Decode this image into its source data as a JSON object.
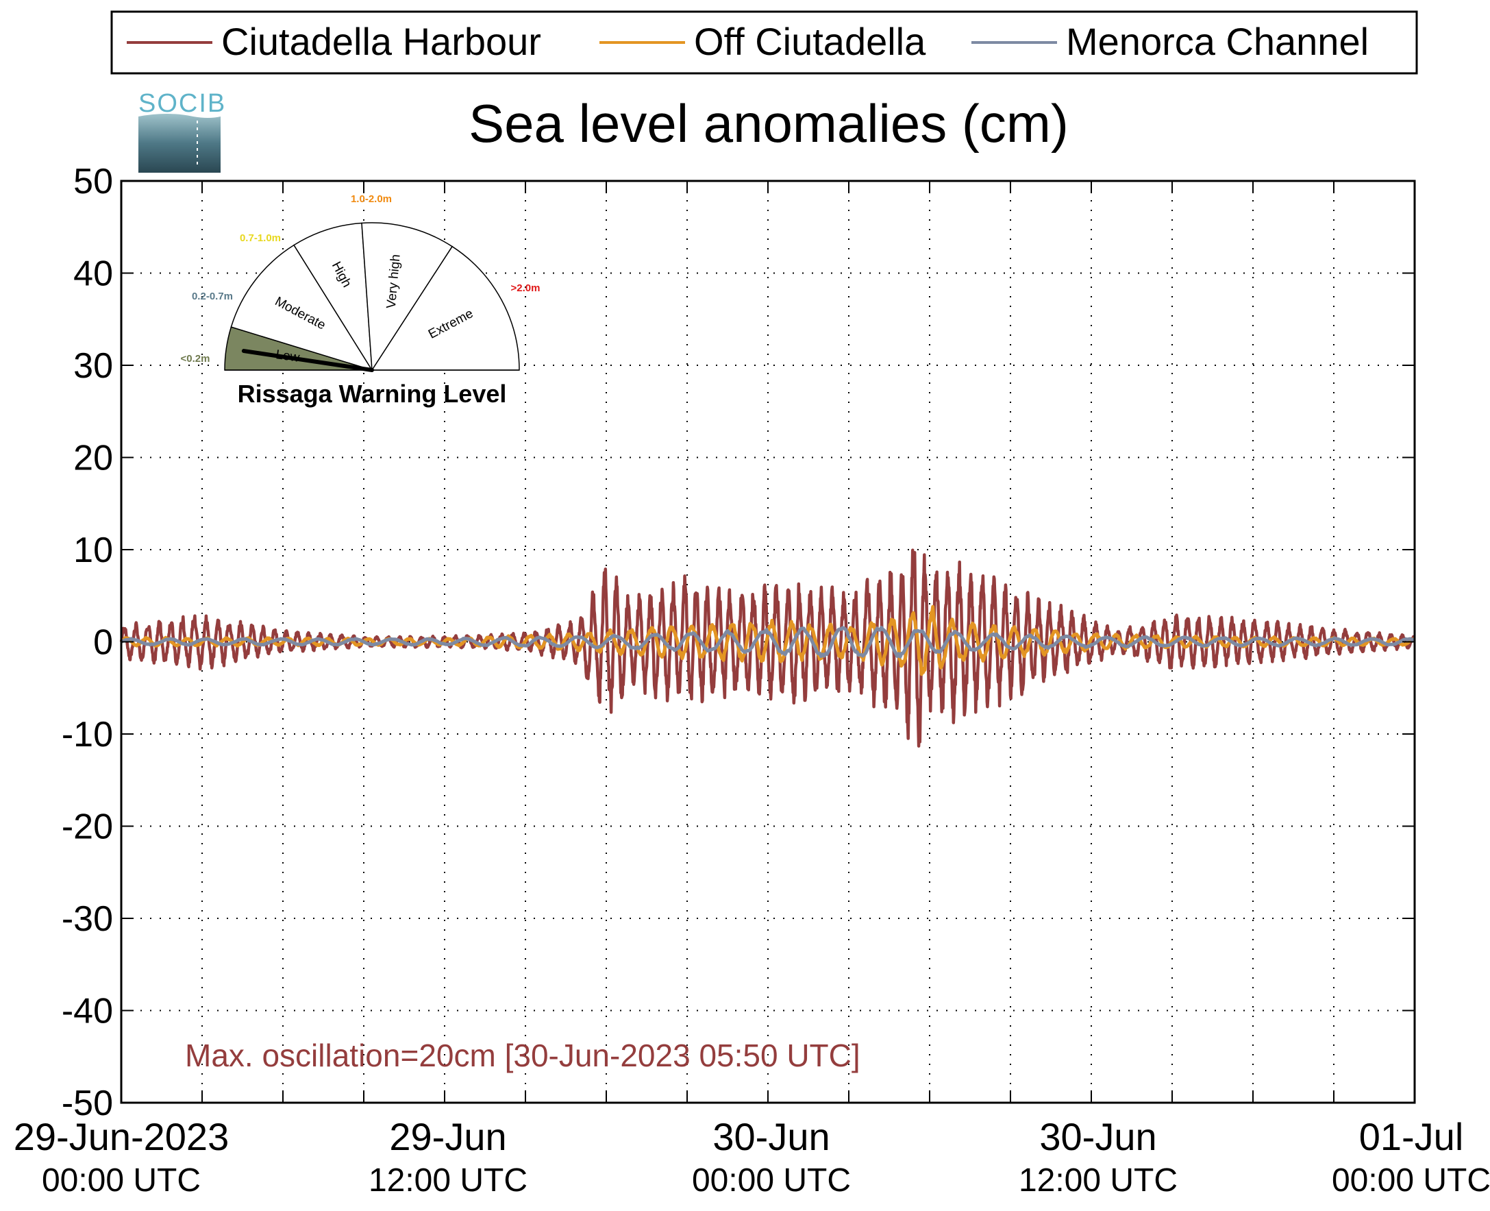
{
  "legend": {
    "entries": [
      {
        "name": "Ciutadella Harbour",
        "color": "#943d3d"
      },
      {
        "name": "Off Ciutadella",
        "color": "#e39523"
      },
      {
        "name": "Menorca Channel",
        "color": "#7d8aa3"
      }
    ]
  },
  "logo": {
    "text": "SOCIB"
  },
  "gauge": {
    "title": "Rissaga Warning Level",
    "sectors": [
      {
        "label": "Low",
        "range": "<0.2m",
        "range_color": "#6f7a4e",
        "fill": "#7b8660"
      },
      {
        "label": "Moderate",
        "range": "0.2-0.7m",
        "range_color": "#5a7a8a",
        "fill": "#ffffff"
      },
      {
        "label": "High",
        "range": "0.7-1.0m",
        "range_color": "#e8d820",
        "fill": "#ffffff"
      },
      {
        "label": "Very high",
        "range": "1.0-2.0m",
        "range_color": "#f08a10",
        "fill": "#ffffff"
      },
      {
        "label": "Extreme",
        "range": ">2.0m",
        "range_color": "#e01818",
        "fill": "#ffffff"
      }
    ],
    "current_level": "Low"
  },
  "chart_data": {
    "type": "line",
    "title": "Sea level anomalies (cm)",
    "ylim": [
      -50,
      50
    ],
    "y_ticks": [
      "50",
      "40",
      "30",
      "20",
      "10",
      "0",
      "-10",
      "-20",
      "-30",
      "-40",
      "-50"
    ],
    "x_range_hours": [
      0,
      48
    ],
    "x_ticks": [
      {
        "line1": "29-Jun-2023",
        "line2": "00:00 UTC"
      },
      {
        "line1": "29-Jun",
        "line2": "12:00 UTC"
      },
      {
        "line1": "30-Jun",
        "line2": "00:00 UTC"
      },
      {
        "line1": "30-Jun",
        "line2": "12:00 UTC"
      },
      {
        "line1": "01-Jul",
        "line2": "00:00 UTC"
      }
    ],
    "grid": true,
    "legend_position": "top",
    "series": [
      {
        "name": "Ciutadella Harbour",
        "color": "#943d3d",
        "envelope_hours": [
          0,
          3,
          6,
          9,
          12,
          15,
          17,
          18,
          19,
          21,
          23,
          25,
          27,
          29,
          29.5,
          30,
          31,
          33,
          35,
          37,
          39,
          42,
          45,
          48
        ],
        "envelope_cm": [
          1.5,
          2.5,
          1.0,
          0.5,
          0.5,
          0.8,
          2.0,
          7.0,
          4.0,
          6.0,
          4.5,
          5.5,
          4.5,
          7.0,
          11.0,
          6.0,
          7.5,
          5.0,
          3.0,
          1.0,
          2.5,
          2.0,
          1.2,
          0.5
        ]
      },
      {
        "name": "Off Ciutadella",
        "color": "#e39523",
        "envelope_hours": [
          0,
          12,
          17,
          20,
          24,
          27,
          29,
          30,
          31,
          33,
          36,
          40,
          48
        ],
        "envelope_cm": [
          0.4,
          0.3,
          0.8,
          1.5,
          2.0,
          1.5,
          2.5,
          3.5,
          2.0,
          1.5,
          0.8,
          0.5,
          0.3
        ]
      },
      {
        "name": "Menorca Channel",
        "color": "#7d8aa3",
        "envelope_hours": [
          0,
          12,
          18,
          24,
          26,
          29,
          30,
          32,
          36,
          48
        ],
        "envelope_cm": [
          0.3,
          0.3,
          0.6,
          1.2,
          1.5,
          1.5,
          1.2,
          0.8,
          0.5,
          0.3
        ]
      }
    ],
    "annotation": "Max. oscillation=20cm [30-Jun-2023 05:50 UTC]",
    "annotation_color": "#943d3d"
  }
}
